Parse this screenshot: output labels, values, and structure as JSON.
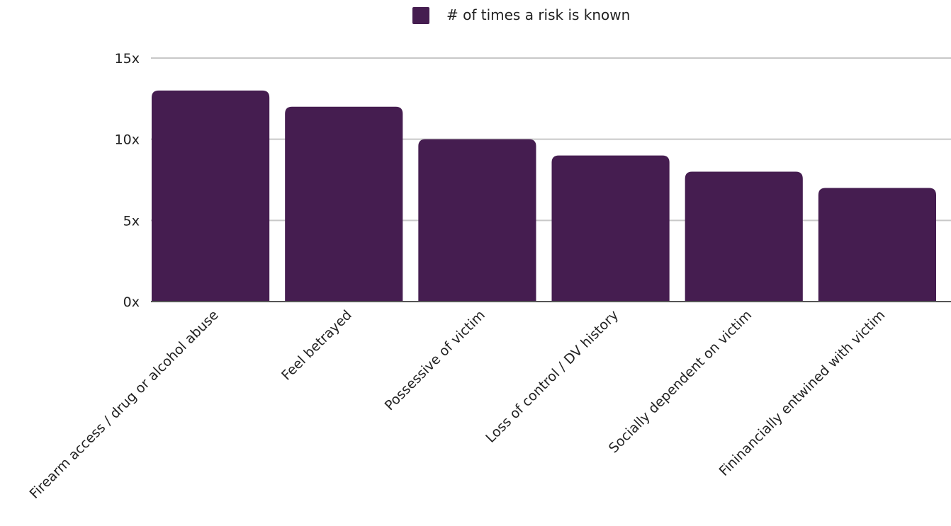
{
  "chart_data": {
    "type": "bar",
    "categories": [
      "Firearm access / drug or alcohol abuse",
      "Feel betrayed",
      "Possessive of victim",
      "Loss of control / DV history",
      "Socially dependent on victim",
      "Fininancially entwined with victim"
    ],
    "series": [
      {
        "name": "# of times a risk is known",
        "values": [
          13,
          12,
          10,
          9,
          8,
          7
        ]
      }
    ],
    "ylim": [
      0,
      15
    ],
    "yticks": [
      0,
      5,
      10,
      15
    ],
    "ytick_labels": [
      "0x",
      "5x",
      "10x",
      "15x"
    ],
    "grid": true,
    "legend": "top-center",
    "colors": {
      "bar": "#451d50",
      "grid": "#c8c8c8",
      "axis": "#555555"
    }
  }
}
